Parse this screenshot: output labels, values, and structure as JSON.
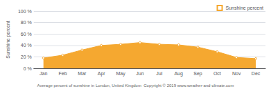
{
  "chart_data": {
    "type": "line",
    "categories": [
      "Jan",
      "Feb",
      "Mar",
      "Apr",
      "May",
      "Jun",
      "Jul",
      "Aug",
      "Sep",
      "Oct",
      "Nov",
      "Dec"
    ],
    "series": [
      {
        "name": "Sunshine percent",
        "color": "#F5A830",
        "marker": "circle",
        "values": [
          18,
          23,
          32,
          40,
          42,
          45,
          42,
          41,
          37,
          29,
          19,
          17
        ]
      }
    ],
    "ylabel": "Sunshine percent",
    "xlabel": "Average percent of sunshine in London, United Kingdom  Copyright © 2019 www.weather-and-climate.com",
    "ylim": [
      0,
      100
    ],
    "yticks": [
      {
        "value": 0,
        "label": "0 %"
      },
      {
        "value": 20,
        "label": "20 %"
      },
      {
        "value": 40,
        "label": "40 %"
      },
      {
        "value": 60,
        "label": "60 %"
      },
      {
        "value": 80,
        "label": "80 %"
      },
      {
        "value": 100,
        "label": "100 %"
      }
    ],
    "grid": true,
    "legend": "upper right"
  }
}
